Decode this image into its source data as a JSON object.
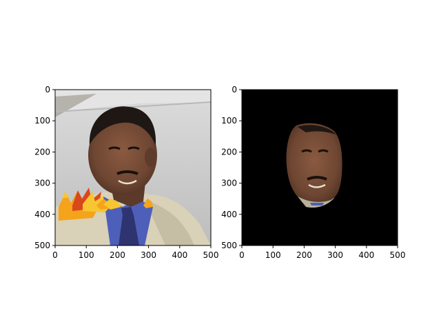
{
  "chart_data": [
    {
      "type": "image",
      "title": "",
      "xlabel": "",
      "ylabel": "",
      "xlim": [
        0,
        500
      ],
      "ylim": [
        500,
        0
      ],
      "x_ticks": [
        0,
        100,
        200,
        300,
        400,
        500
      ],
      "y_ticks": [
        0,
        100,
        200,
        300,
        400,
        500
      ],
      "x_tick_labels": [
        "0",
        "100",
        "200",
        "300",
        "400",
        "500"
      ],
      "y_tick_labels": [
        "0",
        "100",
        "200",
        "300",
        "400",
        "500"
      ],
      "image_content": "photo-portrait-with-autumn-leaves"
    },
    {
      "type": "image",
      "title": "",
      "xlabel": "",
      "ylabel": "",
      "xlim": [
        0,
        500
      ],
      "ylim": [
        500,
        0
      ],
      "x_ticks": [
        0,
        100,
        200,
        300,
        400,
        500
      ],
      "y_ticks": [
        0,
        100,
        200,
        300,
        400,
        500
      ],
      "x_tick_labels": [
        "0",
        "100",
        "200",
        "300",
        "400",
        "500"
      ],
      "y_tick_labels": [
        "0",
        "100",
        "200",
        "300",
        "400",
        "500"
      ],
      "image_content": "face-segmentation-mask-on-black"
    }
  ],
  "colors": {
    "wall": "#c9c9c9",
    "ceiling": "#e2e2e2",
    "skin": "#6e4632",
    "hair": "#1e1714",
    "shirt": "#4d5fb8",
    "jacket": "#d9d1b8",
    "tie": "#2e3470",
    "leaf_orange": "#f5a31a",
    "leaf_red": "#d9481c",
    "leaf_yellow": "#f7c630",
    "mask_background": "#000000"
  }
}
